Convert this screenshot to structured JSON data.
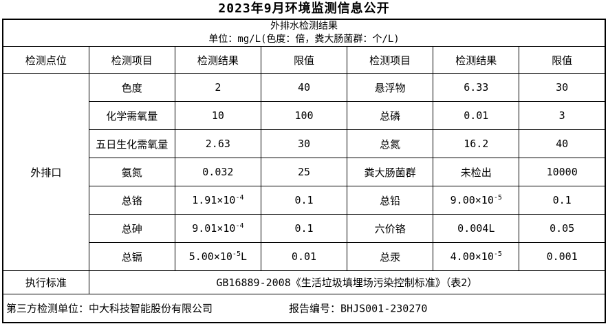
{
  "page_title": "2023年9月环境监测信息公开",
  "table": {
    "header_title": "外排水检测结果",
    "header_unit": "单位：mg/L(色度：倍，粪大肠菌群：个/L)",
    "columns": [
      "检测点位",
      "检测项目",
      "检测结果",
      "限值",
      "检测项目",
      "检测结果",
      "限值"
    ],
    "site_label": "外排口",
    "rows": [
      {
        "item1": "色度",
        "result1": "2",
        "limit1": "40",
        "item2": "悬浮物",
        "result2": "6.33",
        "limit2": "30"
      },
      {
        "item1": "化学需氧量",
        "result1": "10",
        "limit1": "100",
        "item2": "总磷",
        "result2": "0.01",
        "limit2": "3"
      },
      {
        "item1": "五日生化需氧量",
        "result1": "2.63",
        "limit1": "30",
        "item2": "总氮",
        "result2": "16.2",
        "limit2": "40"
      },
      {
        "item1": "氨氮",
        "result1": "0.032",
        "limit1": "25",
        "item2": "粪大肠菌群",
        "result2": "未检出",
        "limit2": "10000"
      },
      {
        "item1": "总铬",
        "result1": "1.91×10^-4",
        "limit1": "0.1",
        "item2": "总铅",
        "result2": "9.00×10^-5",
        "limit2": "0.1"
      },
      {
        "item1": "总砷",
        "result1": "9.01×10^-4",
        "limit1": "0.1",
        "item2": "六价铬",
        "result2": "0.004L",
        "limit2": "0.05"
      },
      {
        "item1": "总镉",
        "result1": "5.00×10^-5L",
        "limit1": "0.01",
        "item2": "总汞",
        "result2": "4.00×10^-5",
        "limit2": "0.001"
      }
    ],
    "standard_label": "执行标准",
    "standard_value": "GB16889-2008《生活垃圾填埋场污染控制标准》（表2）"
  },
  "footer": {
    "third_party": "第三方检测单位：中大科技智能股份有限公司",
    "report_number": "报告编号：BHJS001-230270"
  }
}
